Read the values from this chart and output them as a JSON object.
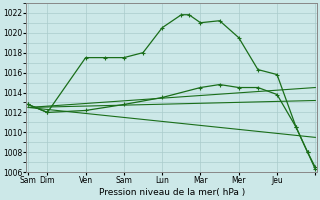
{
  "xlabel": "Pression niveau de la mer( hPa )",
  "ylim": [
    1006,
    1023
  ],
  "yticks": [
    1006,
    1008,
    1010,
    1012,
    1014,
    1016,
    1018,
    1020,
    1022
  ],
  "background_color": "#cce8e8",
  "grid_color": "#aacccc",
  "line_color": "#1a6e1a",
  "xlim": [
    -0.05,
    7.55
  ],
  "x_tick_positions": [
    0,
    0.5,
    1.5,
    2.5,
    3.5,
    4.5,
    5.5,
    6.5,
    7.5
  ],
  "x_tick_labels": [
    "Sam",
    "Dim",
    "Ven",
    "Sam",
    "Lun",
    "Mar",
    "Mer",
    "Jeu",
    ""
  ],
  "line1_x": [
    0,
    0.5,
    1.5,
    2.0,
    2.5,
    3.0,
    3.5,
    4.0,
    4.2,
    4.5,
    5.0,
    5.5,
    6.0,
    6.5,
    7.0,
    7.3,
    7.5
  ],
  "line1_y": [
    1012.8,
    1012.0,
    1017.5,
    1017.5,
    1017.5,
    1018.0,
    1020.5,
    1021.8,
    1021.8,
    1021.0,
    1021.2,
    1019.5,
    1016.3,
    1015.8,
    1010.5,
    1008.0,
    1006.3
  ],
  "line2_x": [
    0,
    0.5,
    1.5,
    2.5,
    3.5,
    4.5,
    5.0,
    5.5,
    6.0,
    6.5,
    7.0,
    7.3,
    7.5
  ],
  "line2_y": [
    1012.8,
    1012.0,
    1012.2,
    1012.8,
    1013.5,
    1014.5,
    1014.8,
    1014.5,
    1014.5,
    1013.8,
    1010.5,
    1008.0,
    1006.5
  ],
  "line3_x": [
    0,
    7.5
  ],
  "line3_y": [
    1012.5,
    1014.5
  ],
  "line4_x": [
    0,
    7.5
  ],
  "line4_y": [
    1012.5,
    1013.2
  ],
  "line5_x": [
    0,
    7.5
  ],
  "line5_y": [
    1012.5,
    1009.5
  ]
}
